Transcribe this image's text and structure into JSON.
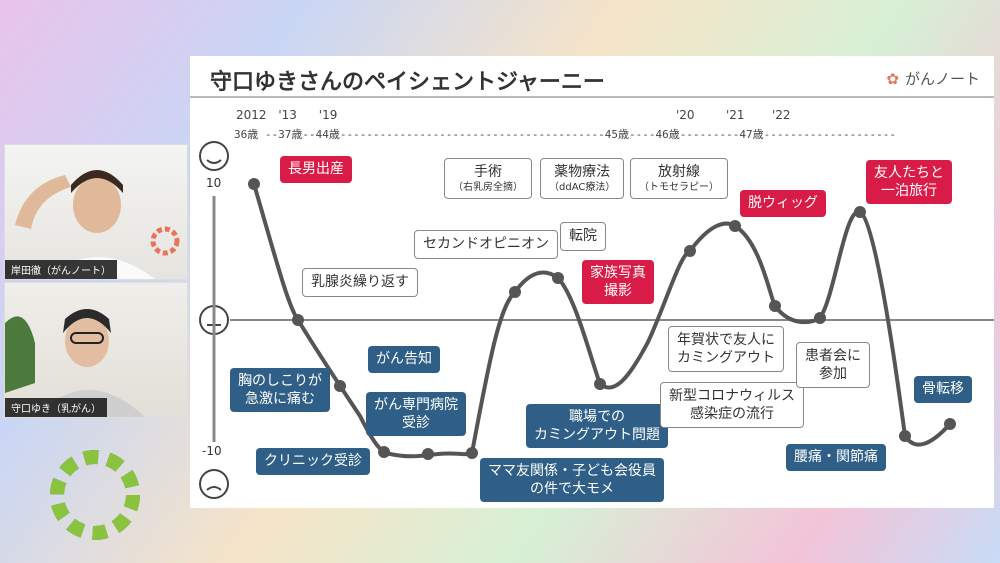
{
  "slide": {
    "title": "守口ゆきさんのペイシェントジャーニー",
    "brand": "がんノート",
    "timeline": [
      "2012",
      "'13",
      "'19",
      "'20",
      "'21",
      "'22"
    ],
    "ages": "36歳 --37歳--44歳----------------------------------------45歳----46歳---------47歳--------------------",
    "scale_top": "10",
    "scale_bottom": "-10"
  },
  "participants": [
    {
      "name": "岸田徹（がんノート）"
    },
    {
      "name": "守口ゆき（乳がん）"
    }
  ],
  "events": {
    "e1": "長男出産",
    "e2": "乳腺炎繰り返す",
    "e3": "胸のしこりが\n急激に痛む",
    "e4": "クリニック受診",
    "e5": "がん告知",
    "e6": "がん専門病院\n受診",
    "e7": "ママ友関係・子ども会役員\nの件で大モメ",
    "e8": "セカンドオピニオン",
    "e9a": "手術",
    "e9b": "（右乳房全摘）",
    "e10a": "薬物療法",
    "e10b": "（ddAC療法）",
    "e11a": "放射線",
    "e11b": "（トモセラピー）",
    "e12": "転院",
    "e13": "家族写真\n撮影",
    "e14": "職場での\nカミングアウト問題",
    "e15": "新型コロナウィルス\n感染症の流行",
    "e16": "脱ウィッグ",
    "e17": "年賀状で友人に\nカミングアウト",
    "e18": "患者会に\n参加",
    "e19": "友人たちと\n一泊旅行",
    "e20": "腰痛・関節痛",
    "e21": "骨転移"
  }
}
